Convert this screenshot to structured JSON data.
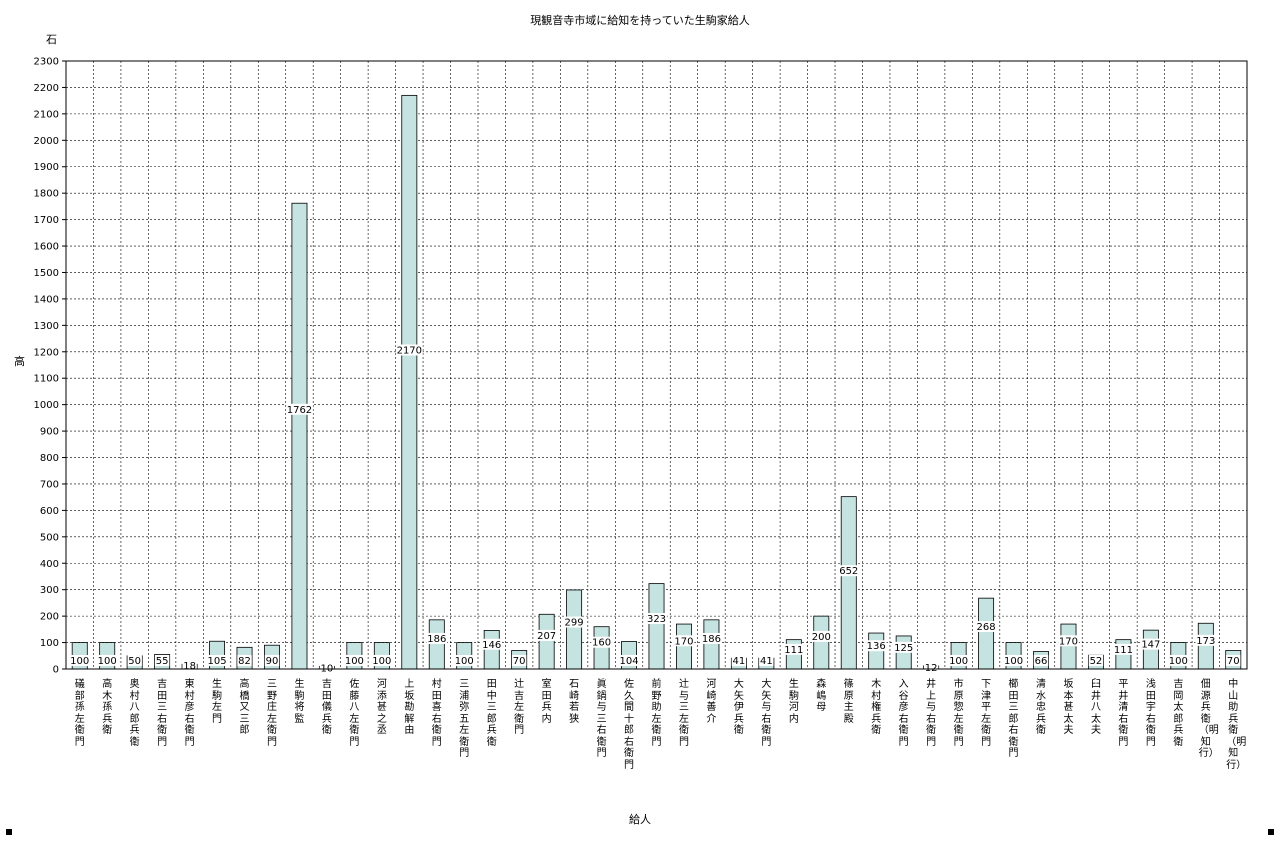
{
  "chart_data": {
    "type": "bar",
    "title": "現観音寺市域に給知を持っていた生駒家給人",
    "unit": "石",
    "ylabel": "高",
    "xlabel": "給人",
    "ylim": [
      0,
      2300
    ],
    "ytick_step": 100,
    "grid": true,
    "bar_color": "#c5e3e0",
    "categories": [
      "礒部孫左衛門",
      "高木孫兵衛",
      "奥村八郎兵衛",
      "吉田三右衛門",
      "東村彦右衛門",
      "生駒左門",
      "高橋又三郎",
      "三野庄左衛門",
      "生駒将監",
      "吉田儀兵衛",
      "佐藤八左衛門",
      "河添甚之丞",
      "上坂勘解由",
      "村田喜右衛門",
      "三浦弥五左衛門",
      "田中三郎兵衛",
      "辻吉左衛門",
      "室田兵内",
      "石崎若狭",
      "眞鍋与三右衛門",
      "佐久間十郎右衛門",
      "前野助左衛門",
      "辻与三左衛門",
      "河崎善介",
      "大矢伊兵衛",
      "大矢与右衛門",
      "生駒河内",
      "森嶋母",
      "篠原主殿",
      "木村権兵衛",
      "入谷彦右衛門",
      "井上与右衛門",
      "市原惣左衛門",
      "下津平左衛門",
      "櫛田三郎右衛門",
      "清水忠兵衛",
      "坂本甚太夫",
      "臼井八太夫",
      "平井清右衛門",
      "浅田宇右衛門",
      "吉岡太郎兵衛",
      "佃源兵衛（明知行）",
      "中山助兵衛（明知行）"
    ],
    "values": [
      100,
      100,
      50,
      55,
      18,
      105,
      82,
      90,
      1762,
      10,
      100,
      100,
      2170,
      186,
      100,
      146,
      70,
      207,
      299,
      160,
      104,
      323,
      170,
      186,
      41,
      41,
      111,
      200,
      652,
      136,
      125,
      12,
      100,
      268,
      100,
      66,
      170,
      52,
      111,
      147,
      100,
      173,
      70
    ]
  }
}
